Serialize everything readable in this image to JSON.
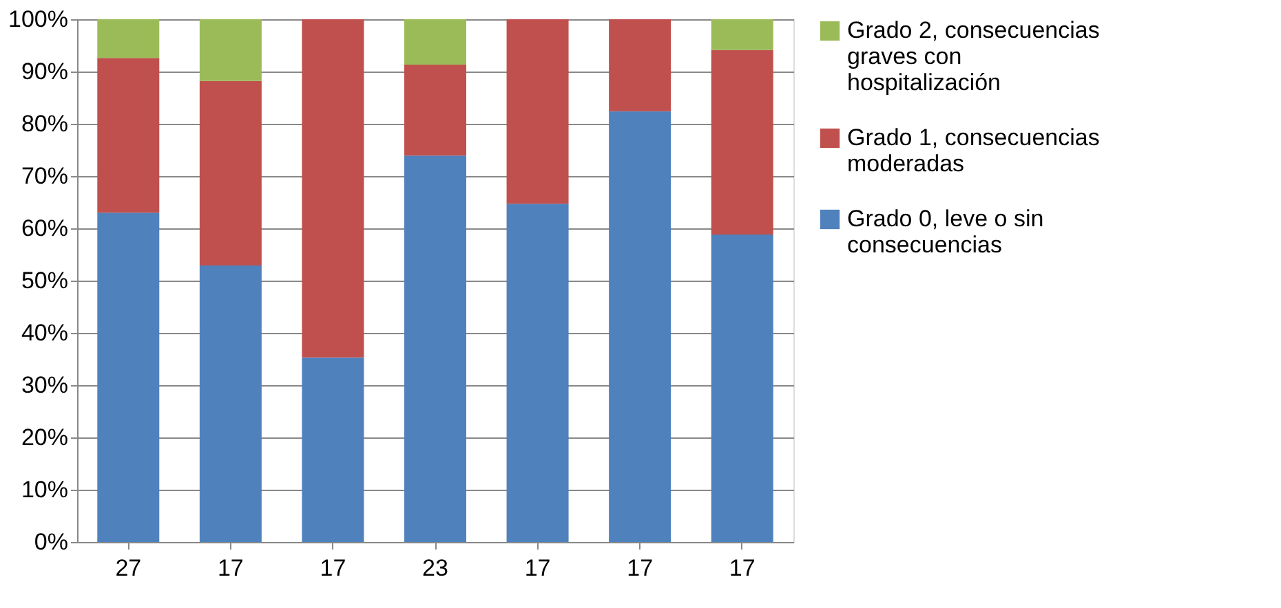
{
  "chart_data": {
    "type": "bar",
    "stacked": true,
    "categories": [
      "27",
      "17",
      "17",
      "23",
      "17",
      "17",
      "17"
    ],
    "series": [
      {
        "name": "Grado 0, leve o sin consecuencias",
        "color": "#4f81bd",
        "values": [
          63.0,
          52.9,
          35.3,
          73.9,
          64.7,
          82.4,
          58.8
        ]
      },
      {
        "name": "Grado 1, consecuencias moderadas",
        "color": "#c0504d",
        "values": [
          29.6,
          35.3,
          64.7,
          17.4,
          35.3,
          17.6,
          35.3
        ]
      },
      {
        "name": "Grado 2, consecuencias graves con hospitalización",
        "color": "#9bbb59",
        "values": [
          7.4,
          11.8,
          0,
          8.7,
          0,
          0,
          5.9
        ]
      }
    ],
    "ylim": [
      0,
      100
    ],
    "yticks": [
      {
        "value": 0,
        "label": "0%"
      },
      {
        "value": 10,
        "label": "10%"
      },
      {
        "value": 20,
        "label": "20%"
      },
      {
        "value": 30,
        "label": "30%"
      },
      {
        "value": 40,
        "label": "40%"
      },
      {
        "value": 50,
        "label": "50%"
      },
      {
        "value": 60,
        "label": "60%"
      },
      {
        "value": 70,
        "label": "70%"
      },
      {
        "value": 80,
        "label": "80%"
      },
      {
        "value": 90,
        "label": "90%"
      },
      {
        "value": 100,
        "label": "100%"
      }
    ],
    "grid": "y",
    "legend": "right"
  }
}
